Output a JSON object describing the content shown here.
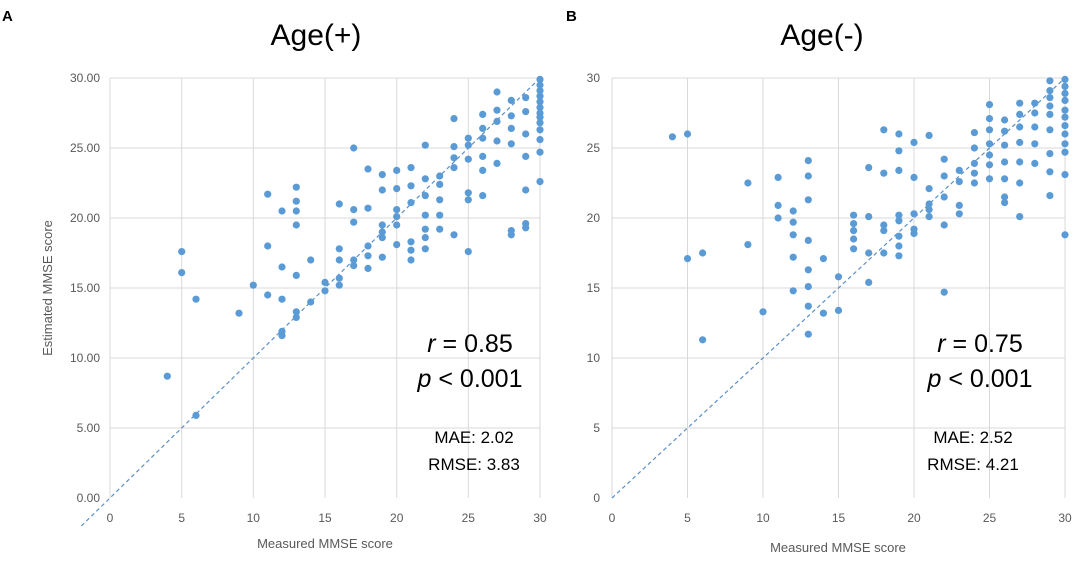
{
  "chart_data": [
    {
      "type": "scatter",
      "panel": "A",
      "title": "Age(+)",
      "xlabel": "Measured MMSE score",
      "ylabel": "Estimated MMSE  score",
      "xlim": [
        0,
        30
      ],
      "ylim": [
        0,
        30
      ],
      "xticks": [
        "0",
        "5",
        "10",
        "15",
        "20",
        "25",
        "30"
      ],
      "yticks": [
        "0.00",
        "5.00",
        "10.00",
        "15.00",
        "20.00",
        "25.00",
        "30.00"
      ],
      "stats": {
        "r_symbol": "r",
        "r_value": " = 0.85",
        "p_symbol": "p",
        "p_value": " < 0.001",
        "mae": "MAE: 2.02",
        "rmse": "RMSE: 3.83"
      },
      "diagonal": [
        [
          -2,
          -2
        ],
        [
          30,
          30
        ]
      ],
      "points": [
        [
          4,
          8.7
        ],
        [
          5,
          17.6
        ],
        [
          5,
          16.1
        ],
        [
          6,
          14.2
        ],
        [
          6,
          5.9
        ],
        [
          9,
          13.2
        ],
        [
          10,
          15.2
        ],
        [
          11,
          21.7
        ],
        [
          11,
          18.0
        ],
        [
          11,
          14.5
        ],
        [
          12,
          20.5
        ],
        [
          12,
          16.5
        ],
        [
          12,
          14.2
        ],
        [
          12,
          11.9
        ],
        [
          12,
          11.6
        ],
        [
          13,
          22.2
        ],
        [
          13,
          21.2
        ],
        [
          13,
          20.5
        ],
        [
          13,
          19.5
        ],
        [
          13,
          15.9
        ],
        [
          13,
          13.3
        ],
        [
          13,
          12.9
        ],
        [
          14,
          17.0
        ],
        [
          14,
          14.0
        ],
        [
          15,
          15.4
        ],
        [
          15,
          14.8
        ],
        [
          16,
          17.8
        ],
        [
          16,
          17.0
        ],
        [
          16,
          15.7
        ],
        [
          16,
          15.2
        ],
        [
          16,
          21.0
        ],
        [
          17,
          25.0
        ],
        [
          17,
          20.6
        ],
        [
          17,
          19.7
        ],
        [
          17,
          17.0
        ],
        [
          17,
          16.6
        ],
        [
          18,
          23.5
        ],
        [
          18,
          20.7
        ],
        [
          18,
          18.0
        ],
        [
          18,
          17.3
        ],
        [
          18,
          16.4
        ],
        [
          19,
          23.1
        ],
        [
          19,
          22.0
        ],
        [
          19,
          19.5
        ],
        [
          19,
          19.0
        ],
        [
          19,
          18.6
        ],
        [
          19,
          17.2
        ],
        [
          20,
          23.4
        ],
        [
          20,
          22.1
        ],
        [
          20,
          20.6
        ],
        [
          20,
          20.1
        ],
        [
          20,
          19.5
        ],
        [
          20,
          18.1
        ],
        [
          21,
          23.6
        ],
        [
          21,
          22.3
        ],
        [
          21,
          21.1
        ],
        [
          21,
          18.3
        ],
        [
          21,
          17.7
        ],
        [
          21,
          17.0
        ],
        [
          22,
          25.2
        ],
        [
          22,
          22.8
        ],
        [
          22,
          21.6
        ],
        [
          22,
          20.2
        ],
        [
          22,
          19.2
        ],
        [
          22,
          18.6
        ],
        [
          22,
          17.8
        ],
        [
          23,
          23.0
        ],
        [
          23,
          22.4
        ],
        [
          23,
          21.3
        ],
        [
          23,
          20.2
        ],
        [
          23,
          19.2
        ],
        [
          24,
          27.1
        ],
        [
          24,
          25.1
        ],
        [
          24,
          24.3
        ],
        [
          24,
          23.6
        ],
        [
          24,
          18.8
        ],
        [
          25,
          25.7
        ],
        [
          25,
          25.2
        ],
        [
          25,
          24.2
        ],
        [
          25,
          21.8
        ],
        [
          25,
          21.3
        ],
        [
          25,
          17.6
        ],
        [
          26,
          27.4
        ],
        [
          26,
          26.4
        ],
        [
          26,
          25.7
        ],
        [
          26,
          24.4
        ],
        [
          26,
          23.4
        ],
        [
          26,
          21.6
        ],
        [
          27,
          29.0
        ],
        [
          27,
          27.7
        ],
        [
          27,
          26.9
        ],
        [
          27,
          25.5
        ],
        [
          27,
          23.9
        ],
        [
          28,
          28.4
        ],
        [
          28,
          27.3
        ],
        [
          28,
          26.4
        ],
        [
          28,
          25.3
        ],
        [
          28,
          19.1
        ],
        [
          28,
          18.8
        ],
        [
          29,
          28.6
        ],
        [
          29,
          27.6
        ],
        [
          29,
          26.0
        ],
        [
          29,
          24.4
        ],
        [
          29,
          22.0
        ],
        [
          29,
          19.6
        ],
        [
          29,
          19.3
        ],
        [
          30,
          29.9
        ],
        [
          30,
          29.5
        ],
        [
          30,
          29.1
        ],
        [
          30,
          28.7
        ],
        [
          30,
          28.3
        ],
        [
          30,
          27.9
        ],
        [
          30,
          27.5
        ],
        [
          30,
          27.2
        ],
        [
          30,
          26.8
        ],
        [
          30,
          26.3
        ],
        [
          30,
          25.6
        ],
        [
          30,
          24.7
        ],
        [
          30,
          22.6
        ]
      ]
    },
    {
      "type": "scatter",
      "panel": "B",
      "title": "Age(-)",
      "xlabel": "Measured MMSE score",
      "ylabel": "",
      "xlim": [
        0,
        30
      ],
      "ylim": [
        0,
        30
      ],
      "xticks": [
        "0",
        "5",
        "10",
        "15",
        "20",
        "25",
        "30"
      ],
      "yticks": [
        "0",
        "5",
        "10",
        "15",
        "20",
        "25",
        "30"
      ],
      "stats": {
        "r_symbol": "r",
        "r_value": " = 0.75",
        "p_symbol": "p",
        "p_value": " < 0.001",
        "mae": "MAE: 2.52",
        "rmse": "RMSE: 4.21"
      },
      "diagonal": [
        [
          0,
          0
        ],
        [
          30,
          30
        ]
      ],
      "points": [
        [
          4,
          25.8
        ],
        [
          5,
          26.0
        ],
        [
          5,
          17.1
        ],
        [
          6,
          17.5
        ],
        [
          6,
          11.3
        ],
        [
          9,
          22.5
        ],
        [
          9,
          18.1
        ],
        [
          10,
          13.3
        ],
        [
          11,
          22.9
        ],
        [
          11,
          20.9
        ],
        [
          11,
          20.0
        ],
        [
          12,
          20.5
        ],
        [
          12,
          19.7
        ],
        [
          12,
          18.8
        ],
        [
          12,
          17.2
        ],
        [
          12,
          14.8
        ],
        [
          13,
          24.1
        ],
        [
          13,
          23.0
        ],
        [
          13,
          21.3
        ],
        [
          13,
          18.4
        ],
        [
          13,
          16.3
        ],
        [
          13,
          15.1
        ],
        [
          13,
          13.7
        ],
        [
          13,
          11.7
        ],
        [
          14,
          17.1
        ],
        [
          14,
          13.2
        ],
        [
          15,
          15.8
        ],
        [
          15,
          13.4
        ],
        [
          16,
          20.2
        ],
        [
          16,
          19.6
        ],
        [
          16,
          19.1
        ],
        [
          16,
          18.5
        ],
        [
          16,
          17.8
        ],
        [
          17,
          23.6
        ],
        [
          17,
          20.1
        ],
        [
          17,
          17.5
        ],
        [
          17,
          15.4
        ],
        [
          18,
          26.3
        ],
        [
          18,
          23.2
        ],
        [
          18,
          19.5
        ],
        [
          18,
          19.1
        ],
        [
          18,
          17.5
        ],
        [
          19,
          26.0
        ],
        [
          19,
          24.8
        ],
        [
          19,
          23.4
        ],
        [
          19,
          20.2
        ],
        [
          19,
          19.8
        ],
        [
          19,
          18.7
        ],
        [
          19,
          18.0
        ],
        [
          19,
          17.3
        ],
        [
          20,
          25.4
        ],
        [
          20,
          22.9
        ],
        [
          20,
          20.3
        ],
        [
          20,
          19.2
        ],
        [
          20,
          18.9
        ],
        [
          21,
          25.9
        ],
        [
          21,
          22.1
        ],
        [
          21,
          21.0
        ],
        [
          21,
          20.6
        ],
        [
          21,
          20.1
        ],
        [
          22,
          24.2
        ],
        [
          22,
          23.0
        ],
        [
          22,
          21.5
        ],
        [
          22,
          19.5
        ],
        [
          22,
          14.7
        ],
        [
          23,
          23.4
        ],
        [
          23,
          22.6
        ],
        [
          23,
          20.9
        ],
        [
          23,
          20.3
        ],
        [
          24,
          26.1
        ],
        [
          24,
          25.0
        ],
        [
          24,
          23.9
        ],
        [
          24,
          23.2
        ],
        [
          24,
          22.5
        ],
        [
          25,
          28.1
        ],
        [
          25,
          27.1
        ],
        [
          25,
          26.3
        ],
        [
          25,
          25.3
        ],
        [
          25,
          24.5
        ],
        [
          25,
          23.8
        ],
        [
          25,
          22.8
        ],
        [
          26,
          27.0
        ],
        [
          26,
          26.2
        ],
        [
          26,
          25.2
        ],
        [
          26,
          24.0
        ],
        [
          26,
          22.8
        ],
        [
          26,
          21.5
        ],
        [
          26,
          21.1
        ],
        [
          27,
          28.2
        ],
        [
          27,
          27.4
        ],
        [
          27,
          26.5
        ],
        [
          27,
          25.4
        ],
        [
          27,
          24.0
        ],
        [
          27,
          22.5
        ],
        [
          27,
          20.1
        ],
        [
          28,
          28.2
        ],
        [
          28,
          27.5
        ],
        [
          28,
          26.5
        ],
        [
          28,
          25.3
        ],
        [
          28,
          23.9
        ],
        [
          29,
          29.8
        ],
        [
          29,
          29.1
        ],
        [
          29,
          28.6
        ],
        [
          29,
          28.0
        ],
        [
          29,
          27.4
        ],
        [
          29,
          26.3
        ],
        [
          29,
          24.6
        ],
        [
          29,
          23.3
        ],
        [
          29,
          21.6
        ],
        [
          30,
          29.9
        ],
        [
          30,
          29.4
        ],
        [
          30,
          28.9
        ],
        [
          30,
          28.4
        ],
        [
          30,
          27.7
        ],
        [
          30,
          27.2
        ],
        [
          30,
          26.6
        ],
        [
          30,
          26.0
        ],
        [
          30,
          25.3
        ],
        [
          30,
          24.7
        ],
        [
          30,
          23.1
        ],
        [
          30,
          18.8
        ]
      ]
    }
  ]
}
